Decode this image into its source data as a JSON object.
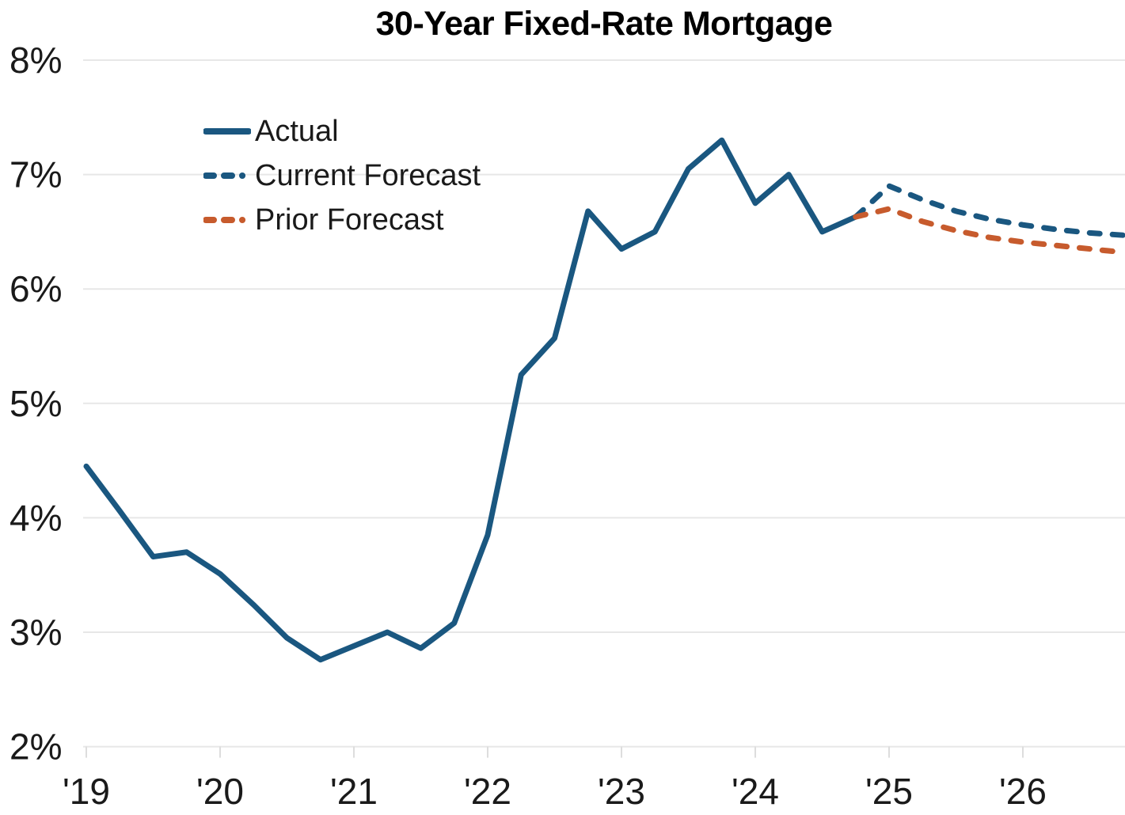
{
  "chart_data": {
    "type": "line",
    "title": "30-Year Fixed-Rate Mortgage",
    "x_unit": "quarter",
    "x_start_year": 2019,
    "xtick_labels": [
      "'19",
      "'20",
      "'21",
      "'22",
      "'23",
      "'24",
      "'25",
      "'26"
    ],
    "ytick_labels": [
      "8%",
      "7%",
      "6%",
      "5%",
      "4%",
      "3%",
      "2%"
    ],
    "ytick_values": [
      8,
      7,
      6,
      5,
      4,
      3,
      2
    ],
    "ylim": [
      2,
      8
    ],
    "grid": "horizontal",
    "legend_position": "upper-left-inside",
    "series": [
      {
        "name": "Actual",
        "style": "solid",
        "color": "#1A5780",
        "start_quarter_index": 0,
        "values": [
          4.45,
          4.06,
          3.66,
          3.7,
          3.51,
          3.24,
          2.95,
          2.76,
          2.88,
          3.0,
          2.86,
          3.08,
          3.85,
          5.25,
          5.57,
          6.68,
          6.35,
          6.5,
          7.05,
          7.3,
          6.75,
          7.0,
          6.5,
          6.63
        ]
      },
      {
        "name": "Current Forecast",
        "style": "dashed",
        "color": "#1A5780",
        "start_quarter_index": 23,
        "values": [
          6.63,
          6.9,
          6.78,
          6.68,
          6.61,
          6.56,
          6.52,
          6.49,
          6.47
        ]
      },
      {
        "name": "Prior Forecast",
        "style": "dashed",
        "color": "#C75B2D",
        "start_quarter_index": 23,
        "values": [
          6.63,
          6.7,
          6.59,
          6.51,
          6.45,
          6.41,
          6.38,
          6.35,
          6.32
        ]
      }
    ],
    "colors": {
      "grid": "#E7E7E7",
      "axis": "#E3E3E3",
      "tick": "#DDDDDD",
      "label": "#1A1A1A",
      "title": "#000000"
    }
  }
}
